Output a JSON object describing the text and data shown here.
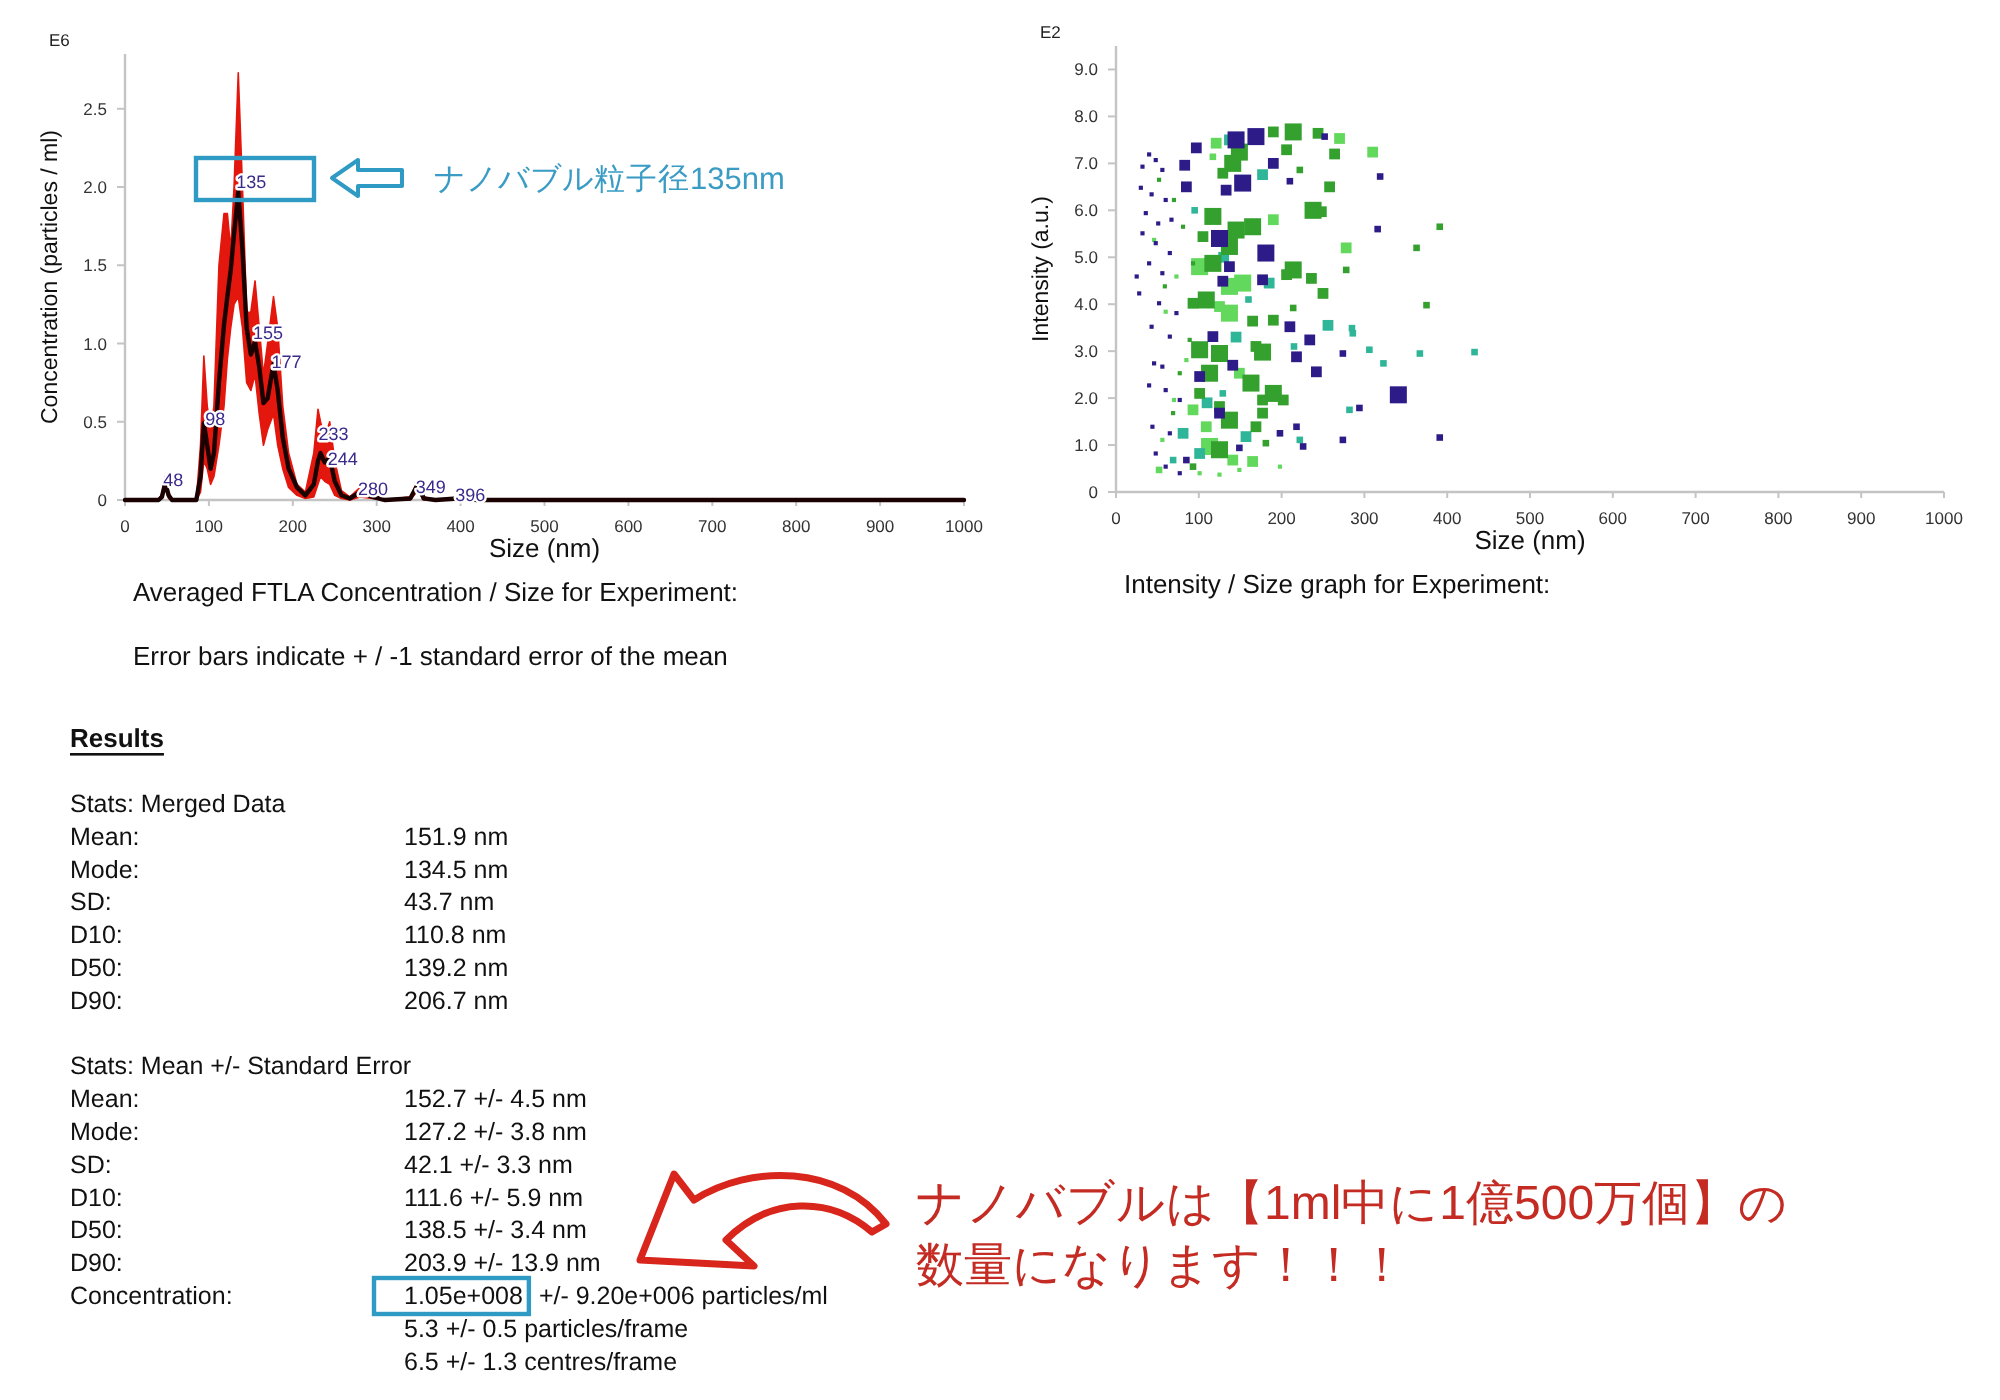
{
  "chart_data": [
    {
      "type": "line",
      "xlabel": "Size (nm)",
      "ylabel": "Concentration (particles / ml)",
      "xlim": [
        0,
        1000
      ],
      "xticks": [
        0,
        100,
        200,
        300,
        400,
        500,
        600,
        700,
        800,
        900,
        1000
      ],
      "ylim": [
        0,
        2.85
      ],
      "yticks": [
        0,
        0.5,
        {
          "value": 1,
          "label": "1.0"
        },
        1.5,
        {
          "value": 2,
          "label": "2.0"
        },
        2.5
      ],
      "annotations": [
        "E6",
        "Averaged FTLA Concentration / Size for Experiment:",
        "Error bars indicate + / -1 standard error of the mean",
        "ナノバブル粒子径135nm",
        {
          "text": "48",
          "x": 48,
          "y": 0.13
        },
        {
          "text": "98",
          "x": 98,
          "y": 0.52
        },
        {
          "text": "135",
          "x": 135,
          "y": 2.03
        },
        {
          "text": "155",
          "x": 155,
          "y": 1.07
        },
        {
          "text": "177",
          "x": 177,
          "y": 0.88
        },
        {
          "text": "233",
          "x": 233,
          "y": 0.42
        },
        {
          "text": "244",
          "x": 244,
          "y": 0.26
        },
        {
          "text": "280",
          "x": 280,
          "y": 0.07
        },
        {
          "text": "349",
          "x": 349,
          "y": 0.08
        },
        {
          "text": "396",
          "x": 396,
          "y": 0.03
        }
      ],
      "series": [
        {
          "color": "#1a0000",
          "x": [
            0,
            40,
            44,
            48,
            52,
            56,
            85,
            90,
            94,
            98,
            102,
            106,
            112,
            118,
            122,
            126,
            130,
            135,
            140,
            145,
            150,
            155,
            160,
            165,
            170,
            177,
            182,
            188,
            195,
            205,
            215,
            225,
            230,
            233,
            238,
            244,
            250,
            258,
            268,
            280,
            295,
            310,
            340,
            349,
            356,
            370,
            396,
            420,
            1000
          ],
          "values": [
            0,
            0,
            0.02,
            0.11,
            0.03,
            0,
            0,
            0.15,
            0.49,
            0.35,
            0.2,
            0.3,
            0.75,
            1.12,
            1.3,
            1.47,
            1.7,
            1.97,
            1.6,
            1.1,
            0.93,
            1.01,
            0.85,
            0.62,
            0.65,
            0.87,
            0.7,
            0.4,
            0.2,
            0.08,
            0.03,
            0.1,
            0.25,
            0.3,
            0.24,
            0.27,
            0.12,
            0.03,
            0.01,
            0.05,
            0.02,
            0,
            0.01,
            0.1,
            0.01,
            0,
            0.01,
            0,
            0
          ],
          "lower": [
            0,
            0,
            0.01,
            0.07,
            0.01,
            0,
            0,
            0.05,
            0.25,
            0.2,
            0.1,
            0.15,
            0.35,
            0.6,
            0.9,
            1.1,
            1.25,
            1.3,
            1.1,
            0.75,
            0.7,
            0.8,
            0.55,
            0.35,
            0.45,
            0.55,
            0.35,
            0.2,
            0.08,
            0.03,
            0.01,
            0.02,
            0.1,
            0.15,
            0.12,
            0.1,
            0.03,
            0.01,
            0,
            0.02,
            0.01,
            0,
            0,
            0.06,
            0,
            0,
            0,
            0,
            0
          ],
          "upper": [
            0,
            0,
            0.04,
            0.15,
            0.05,
            0,
            0,
            0.35,
            0.92,
            0.6,
            0.45,
            0.6,
            1.5,
            1.83,
            1.83,
            1.6,
            2.0,
            2.73,
            2.0,
            1.2,
            1.2,
            1.4,
            1.1,
            0.8,
            1.0,
            1.3,
            1.1,
            0.6,
            0.3,
            0.1,
            0.05,
            0.3,
            0.58,
            0.5,
            0.4,
            0.5,
            0.25,
            0.06,
            0.02,
            0.08,
            0.04,
            0,
            0.02,
            0.12,
            0.02,
            0,
            0.01,
            0,
            0
          ]
        }
      ]
    },
    {
      "type": "bubble",
      "xlabel": "Size (nm)",
      "ylabel": "Intensity (a.u.)",
      "xlim": [
        0,
        1000
      ],
      "xticks": [
        0,
        100,
        200,
        300,
        400,
        500,
        600,
        700,
        800,
        900,
        1000
      ],
      "ylim": [
        0,
        9.5
      ],
      "yticks": [
        0,
        {
          "value": 1,
          "label": "1.0"
        },
        {
          "value": 2,
          "label": "2.0"
        },
        {
          "value": 3,
          "label": "3.0"
        },
        {
          "value": 4,
          "label": "4.0"
        },
        {
          "value": 5,
          "label": "5.0"
        },
        {
          "value": 6,
          "label": "6.0"
        },
        {
          "value": 7,
          "label": "7.0"
        },
        {
          "value": 8,
          "label": "8.0"
        },
        {
          "value": 9,
          "label": "9.0"
        }
      ],
      "marker": "square",
      "annotations": [
        "E2",
        "Intensity / Size graph for Experiment:"
      ],
      "series": [
        {
          "color": "#62d85c",
          "x": [
            270,
            310,
            121,
            117,
            190,
            278,
            101,
            153,
            137,
            125,
            137,
            149,
            93,
            109,
            113,
            141,
            165,
            52,
            46,
            73,
            60,
            85,
            70,
            56,
            101,
            125,
            149,
            198
          ],
          "values": [
            7.53,
            7.24,
            7.43,
            7.14,
            5.8,
            5.2,
            4.8,
            4.45,
            4.38,
            3.95,
            3.81,
            2.53,
            1.75,
            1.39,
            0.97,
            0.68,
            0.65,
            0.47,
            5.37,
            4.59,
            3.84,
            2.81,
            1.96,
            1.11,
            0.4,
            0.37,
            0.47,
            0.54
          ],
          "sizes": [
            0.4,
            0.4,
            0.4,
            0.15,
            0.4,
            0.4,
            1,
            1,
            1,
            0.4,
            1,
            0.4,
            0.4,
            0.4,
            1,
            0.4,
            0.4,
            0.15,
            0.06,
            0.06,
            0.06,
            0.06,
            0.06,
            0.06,
            0.06,
            0.06,
            0.06,
            0.06
          ]
        },
        {
          "color": "#2fb597",
          "x": [
            137,
            177,
            185,
            256,
            285,
            286,
            306,
            367,
            433,
            323,
            282,
            129,
            81,
            157,
            101,
            69,
            222,
            145,
            110,
            160,
            95,
            130,
            215
          ],
          "values": [
            7.5,
            6.76,
            4.45,
            3.55,
            3.49,
            3.38,
            3.03,
            2.95,
            2.98,
            2.74,
            1.75,
            2.1,
            1.25,
            1.18,
            0.82,
            0.68,
            1.11,
            3.3,
            1.9,
            4.1,
            6.0,
            5.0,
            3.1
          ],
          "sizes": [
            0.4,
            0.4,
            0.4,
            0.4,
            0.15,
            0.15,
            0.15,
            0.15,
            0.15,
            0.15,
            0.15,
            0.15,
            0.4,
            0.4,
            0.4,
            0.15,
            0.15,
            0.4,
            0.4,
            0.15,
            0.15,
            0.4,
            0.15
          ]
        },
        {
          "color": "#34a02e",
          "x": [
            190,
            214,
            244,
            264,
            149,
            206,
            222,
            141,
            258,
            129,
            117,
            165,
            238,
            248,
            137,
            145,
            105,
            117,
            214,
            206,
            236,
            250,
            278,
            109,
            93,
            165,
            190,
            214,
            375,
            363,
            391,
            101,
            125,
            169,
            177,
            113,
            163,
            190,
            202,
            177,
            101,
            125,
            177,
            137,
            169,
            181,
            125,
            93,
            52,
            70,
            81,
            59,
            89,
            77,
            69,
            93
          ],
          "values": [
            7.67,
            7.67,
            7.64,
            7.2,
            7.24,
            7.29,
            6.86,
            7.0,
            6.5,
            6.79,
            5.87,
            5.65,
            6.0,
            5.97,
            5.23,
            5.58,
            5.44,
            4.87,
            4.73,
            4.63,
            4.55,
            4.23,
            4.73,
            4.09,
            4.02,
            3.64,
            3.66,
            3.92,
            3.98,
            5.2,
            5.65,
            3.03,
            2.95,
            3.1,
            2.98,
            2.53,
            2.32,
            2.1,
            1.96,
            1.96,
            2.1,
            1.82,
            1.68,
            1.53,
            1.39,
            1.04,
            0.9,
            0.54,
            6.65,
            6.22,
            5.65,
            4.38,
            3.24,
            2.53,
            1.68,
            4.87
          ],
          "sizes": [
            0.4,
            1,
            0.4,
            0.4,
            1,
            0.4,
            0.15,
            1,
            0.4,
            0.4,
            1,
            1,
            1,
            0.4,
            1,
            1,
            0.4,
            1,
            1,
            0.4,
            0.4,
            0.4,
            0.15,
            1,
            0.4,
            0.4,
            0.4,
            0.15,
            0.15,
            0.15,
            0.15,
            1,
            1,
            0.4,
            1,
            1,
            1,
            1,
            0.4,
            0.4,
            0.4,
            0.4,
            0.4,
            1,
            0.4,
            0.15,
            1,
            0.15,
            0.06,
            0.06,
            0.06,
            0.06,
            0.06,
            0.06,
            0.06,
            0.06
          ]
        },
        {
          "color": "#2d1b88",
          "x": [
            169,
            145,
            97,
            190,
            252,
            210,
            153,
            133,
            319,
            83,
            85,
            125,
            181,
            137,
            129,
            177,
            316,
            210,
            234,
            218,
            242,
            274,
            341,
            294,
            391,
            274,
            117,
            141,
            101,
            125,
            226,
            198,
            218,
            149,
            85,
            40,
            48,
            32,
            56,
            30,
            43,
            60,
            36,
            51,
            67,
            32,
            48,
            65,
            40,
            56,
            25,
            28,
            52,
            73,
            43,
            65,
            46,
            56,
            40,
            60,
            77,
            44,
            65,
            48,
            60,
            77
          ],
          "values": [
            7.57,
            7.5,
            7.33,
            7.0,
            7.57,
            6.62,
            6.58,
            6.43,
            6.72,
            6.96,
            6.5,
            5.4,
            5.09,
            4.8,
            4.49,
            4.52,
            5.6,
            3.52,
            3.24,
            2.88,
            2.56,
            2.95,
            2.07,
            1.79,
            1.16,
            1.11,
            3.31,
            2.7,
            2.46,
            1.68,
            0.97,
            1.25,
            1.39,
            0.94,
            0.68,
            7.19,
            7.07,
            6.93,
            6.86,
            6.48,
            6.34,
            6.22,
            5.94,
            5.72,
            5.8,
            5.51,
            5.3,
            5.09,
            4.87,
            4.66,
            4.59,
            4.23,
            4.02,
            3.81,
            3.52,
            3.31,
            2.74,
            2.67,
            2.27,
            2.17,
            1.96,
            1.39,
            1.25,
            0.82,
            0.54,
            0.4
          ],
          "sizes": [
            1,
            1,
            0.4,
            0.4,
            0.15,
            0.15,
            1,
            0.4,
            0.15,
            0.4,
            0.4,
            1,
            1,
            0.4,
            0.4,
            0.4,
            0.15,
            0.4,
            0.4,
            0.4,
            0.4,
            0.15,
            1,
            0.15,
            0.15,
            0.15,
            0.4,
            0.4,
            0.4,
            0.4,
            0.15,
            0.15,
            0.15,
            0.15,
            0.15,
            0.06,
            0.06,
            0.06,
            0.06,
            0.06,
            0.06,
            0.06,
            0.06,
            0.06,
            0.06,
            0.06,
            0.06,
            0.06,
            0.06,
            0.06,
            0.06,
            0.06,
            0.06,
            0.06,
            0.06,
            0.06,
            0.06,
            0.06,
            0.06,
            0.06,
            0.06,
            0.06,
            0.06,
            0.06,
            0.06,
            0.06
          ]
        }
      ]
    },
    {
      "type": "other",
      "title": "Results",
      "annotations": [
        "Stats: Merged Data",
        "Mean:\t151.9 nm",
        "Mode:\t134.5 nm",
        "SD:\t43.7 nm",
        "D10:\t110.8 nm",
        "D50:\t139.2 nm",
        "D90:\t206.7 nm",
        "Stats: Mean +/- Standard Error",
        "Mean:\t152.7 +/- 4.5 nm",
        "Mode:\t127.2 +/- 3.8 nm",
        "SD:\t42.1 +/- 3.3 nm",
        "D10:\t111.6 +/- 5.9 nm",
        "D50:\t138.5 +/- 3.4 nm",
        "D90:\t203.9 +/- 13.9 nm",
        "Concentration:\t1.05e+008 +/- 9.20e+006 particles/ml",
        "\t5.3 +/- 0.5 particles/frame",
        "\t6.5 +/- 1.3 centres/frame",
        "ナノバブルは【1ml中に1億500万個】の",
        "数量になります！！！"
      ]
    }
  ]
}
